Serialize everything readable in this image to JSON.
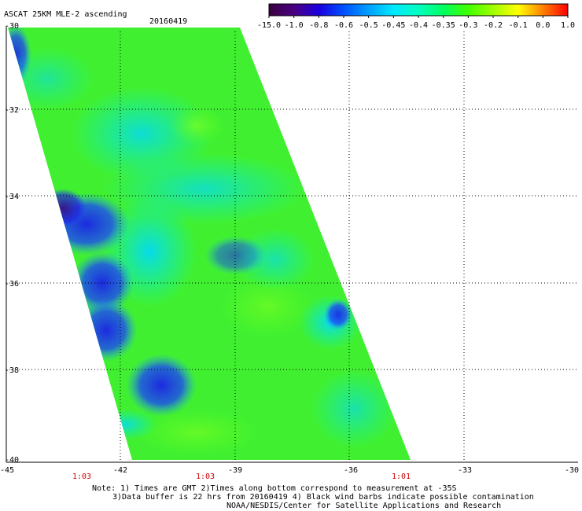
{
  "header": {
    "product": "ASCAT 25KM MLE-2 ascending",
    "date": "20160419"
  },
  "colorbar": {
    "labels": [
      "-15.0",
      "-1.0",
      "-0.8",
      "-0.6",
      "-0.5",
      "-0.45",
      "-0.4",
      "-0.35",
      "-0.3",
      "-0.2",
      "-0.1",
      "0.0",
      "1.0"
    ],
    "colors": [
      "#3a0040",
      "#4a0080",
      "#1a00e0",
      "#0050ff",
      "#00a0ff",
      "#00e8ff",
      "#00ffc0",
      "#00ff60",
      "#40ff00",
      "#a0ff00",
      "#ffff00",
      "#ff8000",
      "#ff0000"
    ]
  },
  "map": {
    "lat_range": [
      -40,
      -30
    ],
    "lon_range": [
      -45,
      -30
    ],
    "lat_ticks": [
      "-30",
      "-32",
      "-34",
      "-36",
      "-38",
      "-40"
    ],
    "lon_ticks": [
      "-45",
      "-42",
      "-39",
      "-36",
      "-33",
      "-30"
    ],
    "times": [
      "1:03",
      "1:03",
      "1:01"
    ],
    "swath_color": "#40f020"
  },
  "notes": {
    "line1": "Note: 1) Times are GMT 2)Times along bottom correspond to measurement at -35S",
    "line2": "3)Data buffer is 22 hrs from 20160419 4) Black wind barbs indicate possible contamination",
    "line3": "NOAA/NESDIS/Center for Satellite Applications and Research"
  }
}
